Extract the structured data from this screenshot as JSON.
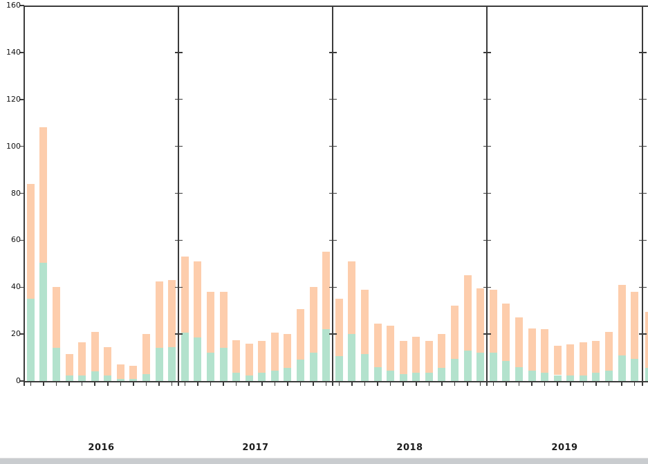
{
  "chart_data": {
    "type": "bar",
    "stacked": true,
    "title": "",
    "xlabel": "",
    "ylabel": "",
    "ylim": [
      0,
      160
    ],
    "yticks": [
      0,
      20,
      40,
      60,
      80,
      100,
      120,
      140,
      160
    ],
    "grid": false,
    "legend": "none",
    "bars_per_group": 12,
    "series_colors": {
      "bottom_segment_green": "#b3e2cd",
      "top_segment_orange": "#fdcdac"
    },
    "axis_line_color": "#3a3a3a",
    "groups": [
      {
        "year": "2016",
        "totals": [
          84,
          108,
          40,
          11.5,
          16.5,
          21,
          14.5,
          7,
          6.5,
          20,
          42.5,
          43
        ],
        "green_bottom": [
          35,
          50.5,
          14,
          2.5,
          2.5,
          4,
          2.5,
          1,
          1,
          3,
          14,
          14.5
        ]
      },
      {
        "year": "2017",
        "totals": [
          53,
          51,
          38,
          38,
          17.5,
          16,
          17,
          20.5,
          20,
          30.5,
          40,
          55
        ],
        "green_bottom": [
          20.5,
          18.5,
          12,
          14,
          3.5,
          2.5,
          3.5,
          4.5,
          5.5,
          9,
          12,
          22
        ]
      },
      {
        "year": "2018",
        "totals": [
          35,
          51,
          39,
          24.5,
          23.5,
          17,
          19,
          17,
          20,
          32,
          45,
          39.5
        ],
        "green_bottom": [
          10.5,
          20,
          11.5,
          6,
          4.5,
          3,
          3.5,
          3.5,
          5.5,
          9.5,
          13,
          12
        ]
      },
      {
        "year": "2019",
        "totals": [
          39,
          33,
          27,
          22.5,
          22,
          15,
          15.5,
          16.5,
          17,
          21,
          41,
          38
        ],
        "green_bottom": [
          12,
          8.5,
          6,
          4.5,
          3.5,
          2.5,
          2.5,
          2.5,
          3.5,
          4.5,
          11,
          9.5
        ]
      },
      {
        "year": "",
        "partial": true,
        "totals": [
          29.5
        ],
        "green_bottom": [
          5.5
        ]
      }
    ]
  }
}
